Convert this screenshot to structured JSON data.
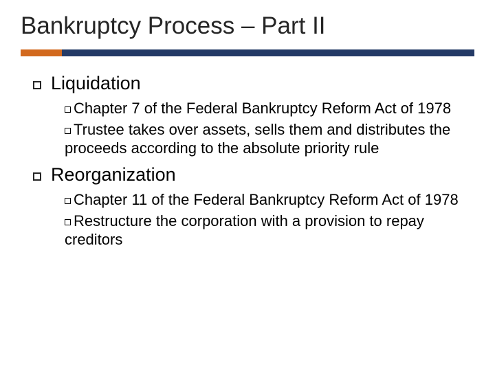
{
  "title": "Bankruptcy Process – Part II",
  "accent": {
    "orange": "#d2691e",
    "navy": "#243a66"
  },
  "items": [
    {
      "label": "Liquidation",
      "subs": [
        "Chapter 7 of the Federal Bankruptcy Reform Act of 1978",
        "Trustee takes over assets, sells them and distributes the proceeds according to the absolute priority rule"
      ]
    },
    {
      "label": "Reorganization",
      "subs": [
        "Chapter 11 of the Federal Bankruptcy Reform Act of 1978",
        "Restructure the corporation with a provision to repay creditors"
      ]
    }
  ]
}
